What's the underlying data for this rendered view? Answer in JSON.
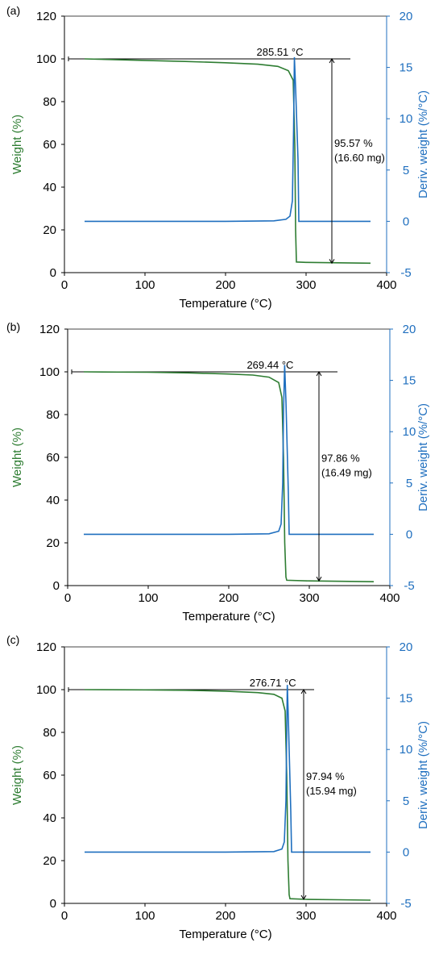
{
  "colors": {
    "weight": "#2e7d32",
    "deriv": "#1f6fbf",
    "axis": "#000000",
    "annotation": "#000000"
  },
  "chart_data": [
    {
      "type": "line",
      "panel_label": "(a)",
      "xlabel": "Temperature (°C)",
      "ylabel_left": "Weight (%)",
      "ylabel_right": "Deriv. weight (%/°C)",
      "xlim": [
        0,
        400
      ],
      "ylim_left": [
        0,
        120
      ],
      "ylim_right": [
        -5,
        20
      ],
      "x_ticks": [
        "0",
        "100",
        "200",
        "300",
        "400"
      ],
      "y_left_ticks": [
        "0",
        "20",
        "40",
        "60",
        "80",
        "100",
        "120"
      ],
      "y_right_ticks": [
        "-5",
        "0",
        "5",
        "10",
        "15",
        "20"
      ],
      "series": [
        {
          "axis": "left",
          "x": [
            25,
            100,
            150,
            200,
            240,
            265,
            278,
            284,
            286,
            287,
            288,
            300,
            340,
            380
          ],
          "y": [
            100,
            99.3,
            98.8,
            98.2,
            97.5,
            96.5,
            94.5,
            90,
            60,
            20,
            5,
            4.8,
            4.6,
            4.4
          ]
        },
        {
          "axis": "right",
          "x": [
            25,
            100,
            200,
            260,
            275,
            280,
            283,
            284.5,
            285.51,
            287,
            290,
            291,
            292,
            300,
            380
          ],
          "y": [
            0,
            0,
            0,
            0.05,
            0.2,
            0.5,
            2,
            9,
            16,
            13,
            6,
            0,
            0,
            0,
            0
          ]
        }
      ],
      "peak_label": "285.51 °C",
      "loss_label_1": "95.57 %",
      "loss_label_2": "(16.60 mg)",
      "peak_x": 285.51,
      "ref_line_y": 100,
      "ref_line_x": [
        5,
        355
      ],
      "loss_marker_x": 332,
      "loss_range": [
        4.4,
        100
      ]
    },
    {
      "type": "line",
      "panel_label": "(b)",
      "xlabel": "Temperature (°C)",
      "ylabel_left": "Weight (%)",
      "ylabel_right": "Deriv. weight (%/°C)",
      "xlim": [
        0,
        400
      ],
      "ylim_left": [
        0,
        120
      ],
      "ylim_right": [
        -5,
        20
      ],
      "x_ticks": [
        "0",
        "100",
        "200",
        "300",
        "400"
      ],
      "y_left_ticks": [
        "0",
        "20",
        "40",
        "60",
        "80",
        "100",
        "120"
      ],
      "y_right_ticks": [
        "-5",
        "0",
        "5",
        "10",
        "15",
        "20"
      ],
      "series": [
        {
          "axis": "left",
          "x": [
            20,
            100,
            150,
            200,
            230,
            250,
            262,
            266,
            268,
            269.5,
            271,
            272,
            300,
            340,
            380
          ],
          "y": [
            100,
            99.8,
            99.5,
            99,
            98.5,
            97.5,
            95,
            88,
            60,
            20,
            4,
            2.5,
            2.2,
            2,
            1.8
          ]
        },
        {
          "axis": "right",
          "x": [
            20,
            100,
            200,
            250,
            262,
            265,
            267,
            268,
            269.44,
            271,
            274,
            275,
            276,
            300,
            380
          ],
          "y": [
            0,
            0,
            0,
            0.05,
            0.3,
            1,
            5,
            12,
            16.5,
            13,
            4,
            0,
            0,
            0,
            0
          ]
        }
      ],
      "peak_label": "269.44 °C",
      "loss_label_1": "97.86 %",
      "loss_label_2": "(16.49 mg)",
      "peak_x": 269.44,
      "ref_line_y": 100,
      "ref_line_x": [
        5,
        335
      ],
      "loss_marker_x": 312,
      "loss_range": [
        2.2,
        100
      ]
    },
    {
      "type": "line",
      "panel_label": "(c)",
      "xlabel": "Temperature (°C)",
      "ylabel_left": "Weight (%)",
      "ylabel_right": "Deriv. weight (%/°C)",
      "xlim": [
        0,
        400
      ],
      "ylim_left": [
        0,
        120
      ],
      "ylim_right": [
        -5,
        20
      ],
      "x_ticks": [
        "0",
        "100",
        "200",
        "300",
        "400"
      ],
      "y_left_ticks": [
        "0",
        "20",
        "40",
        "60",
        "80",
        "100",
        "120"
      ],
      "y_right_ticks": [
        "-5",
        "0",
        "5",
        "10",
        "15",
        "20"
      ],
      "series": [
        {
          "axis": "left",
          "x": [
            25,
            100,
            150,
            200,
            240,
            260,
            270,
            274,
            276,
            277.5,
            279,
            280,
            300,
            340,
            380
          ],
          "y": [
            100,
            99.9,
            99.7,
            99.3,
            98.6,
            97.8,
            96,
            90,
            60,
            20,
            4,
            2.2,
            1.9,
            1.7,
            1.5
          ]
        },
        {
          "axis": "right",
          "x": [
            25,
            100,
            200,
            260,
            270,
            273,
            275,
            276,
            276.71,
            278,
            281,
            282,
            283,
            300,
            380
          ],
          "y": [
            0,
            0,
            0,
            0.05,
            0.3,
            1,
            5,
            12,
            16.3,
            13,
            4,
            0,
            0,
            0,
            0
          ]
        }
      ],
      "peak_label": "276.71 °C",
      "loss_label_1": "97.94 %",
      "loss_label_2": "(15.94 mg)",
      "peak_x": 276.71,
      "ref_line_y": 100,
      "ref_line_x": [
        5,
        310
      ],
      "loss_marker_x": 297,
      "loss_range": [
        1.9,
        100
      ]
    }
  ]
}
